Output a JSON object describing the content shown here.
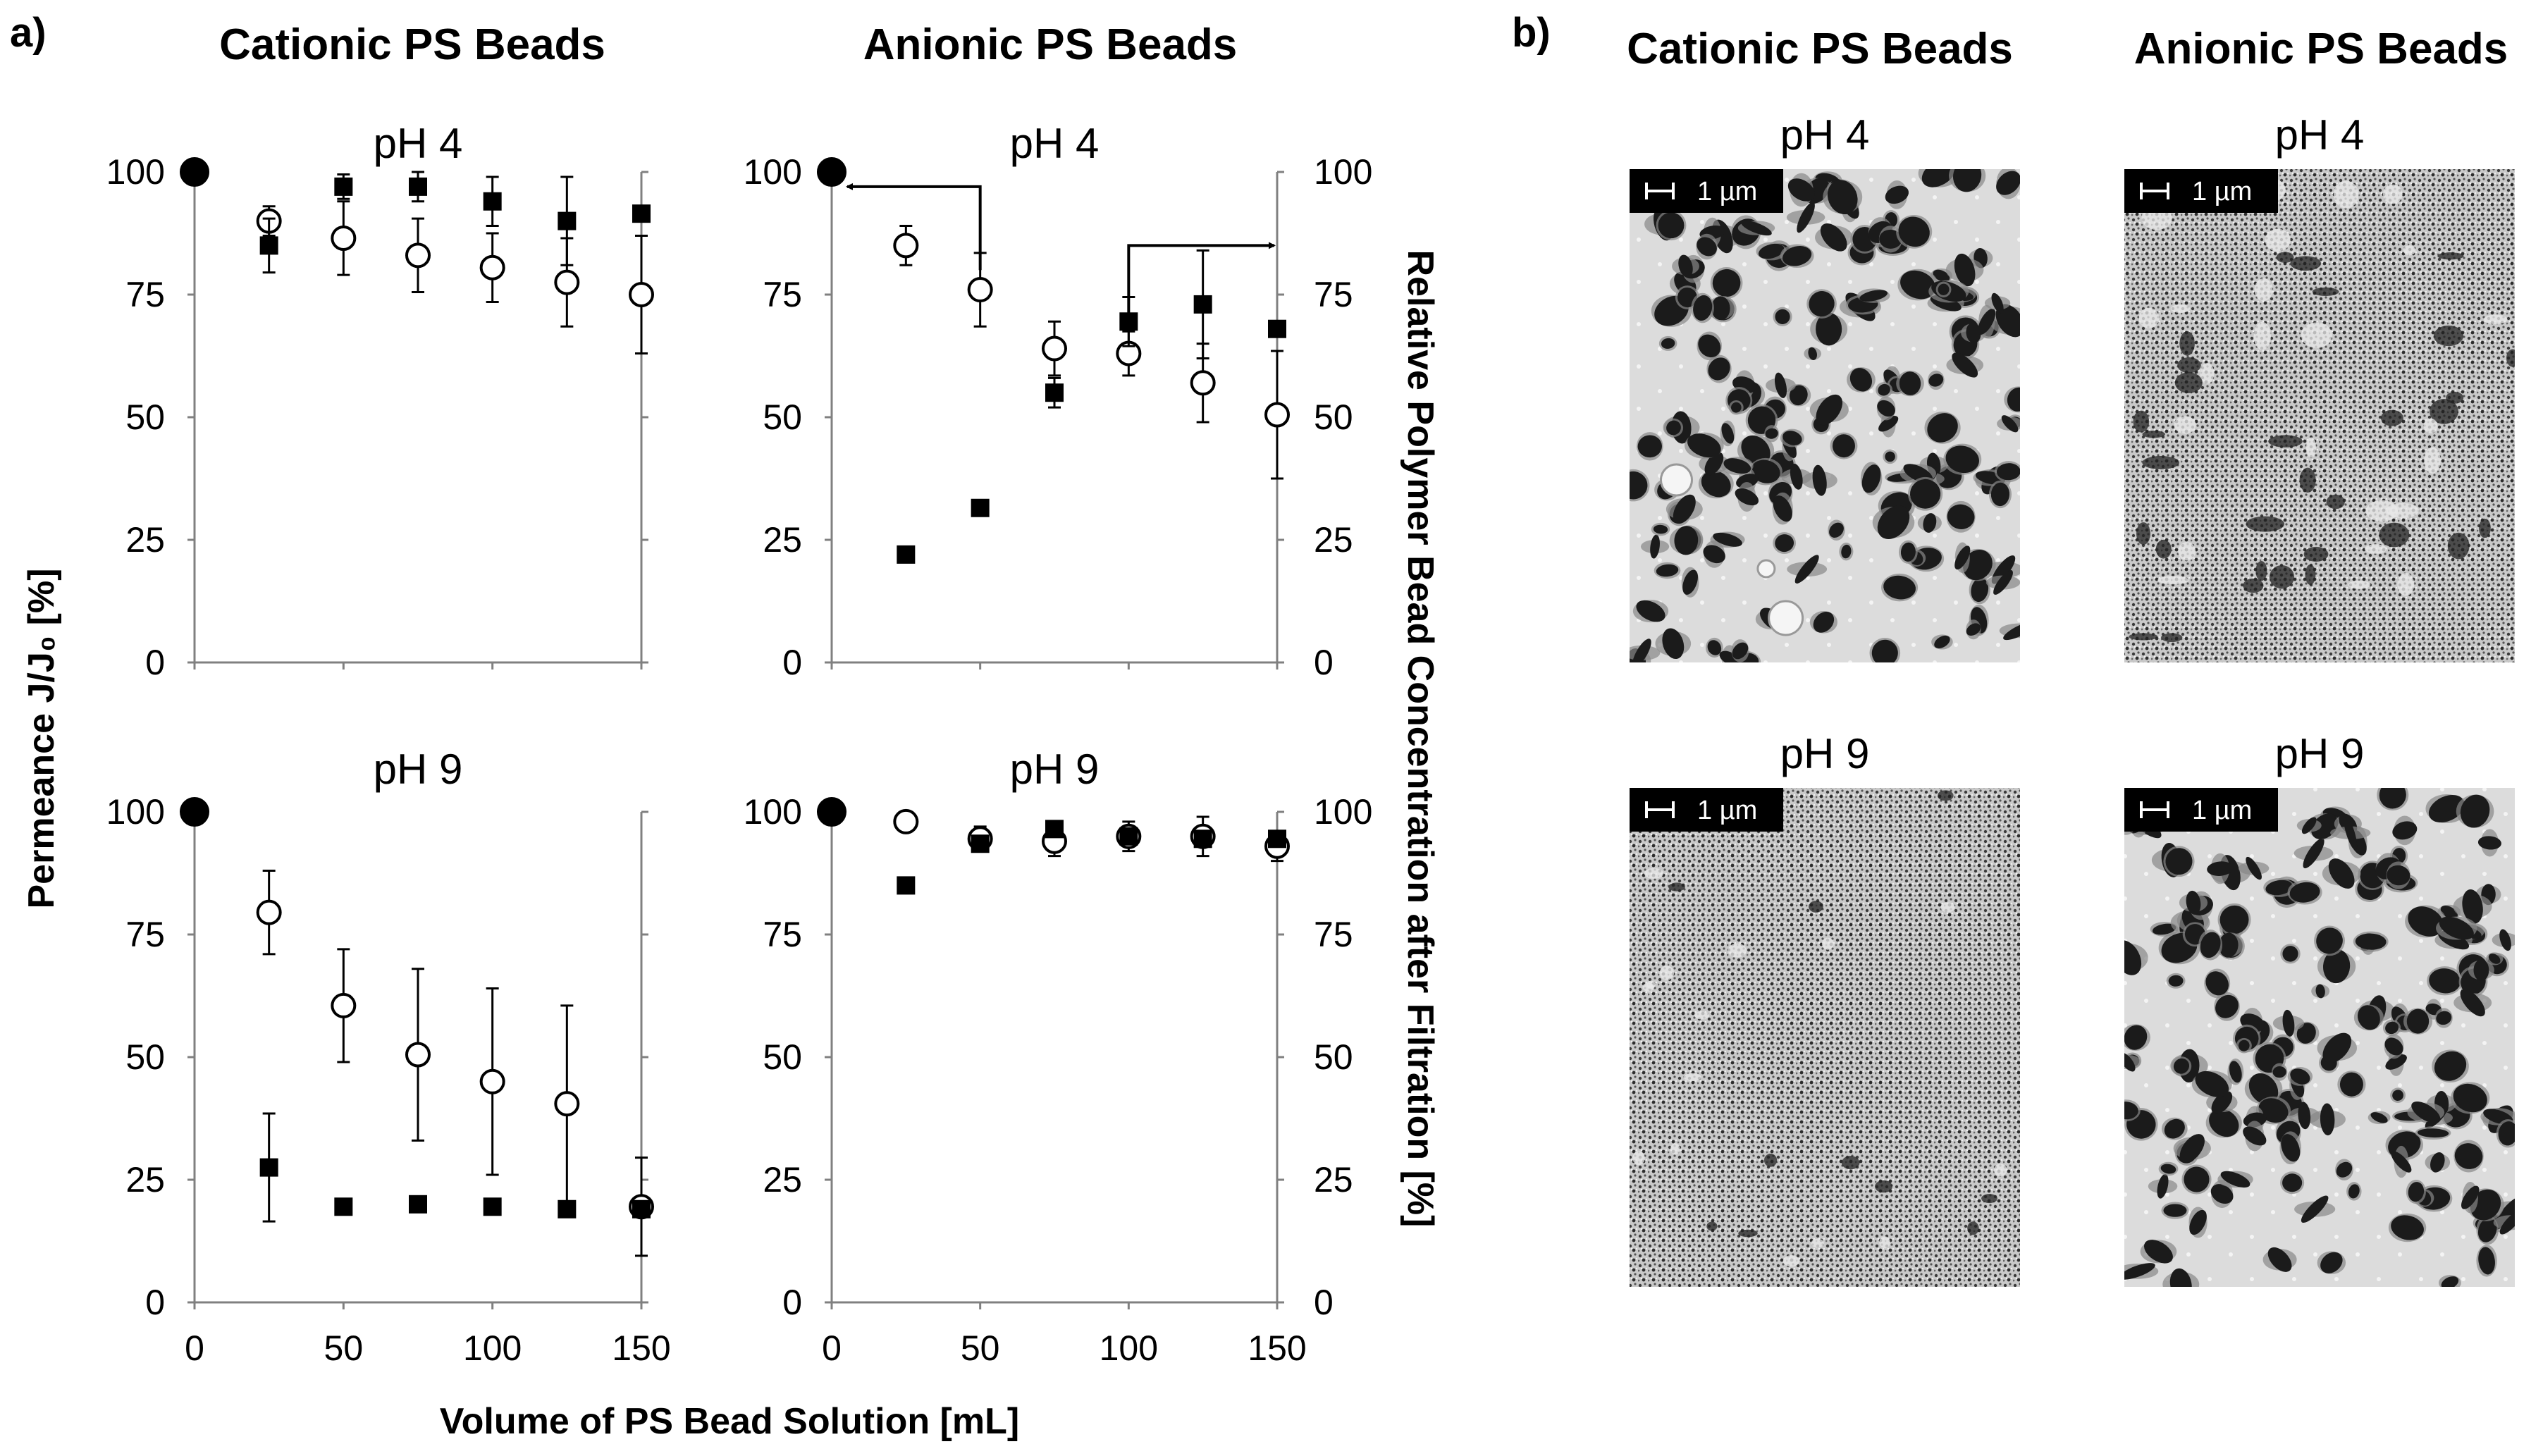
{
  "panel_labels": {
    "a": "a)",
    "b": "b)"
  },
  "headers": {
    "cationic": "Cationic PS Beads",
    "anionic": "Anionic PS Beads"
  },
  "axes": {
    "left_label": "Permeance J/J₀ [%]",
    "right_label": "Relative Polymer Bead Concentration after Filtration [%]",
    "x_label": "Volume of PS Bead Solution [mL]",
    "y_ticks": [
      0,
      25,
      50,
      75,
      100
    ],
    "x_ticks": [
      0,
      50,
      100,
      150
    ]
  },
  "sem": {
    "scale_label": "1 µm",
    "tiles": [
      {
        "id": "cat-ph4",
        "header": "pH 4",
        "style": "porous"
      },
      {
        "id": "ani-ph4",
        "header": "pH 4",
        "style": "fine"
      },
      {
        "id": "cat-ph9",
        "header": "pH 9",
        "style": "fine"
      },
      {
        "id": "ani-ph9",
        "header": "pH 9",
        "style": "porous"
      }
    ]
  },
  "colors": {
    "marker": "#000000",
    "sem_light": "#e6e6e6",
    "sem_dark": "#1a1a1a",
    "scale_bg": "#000000"
  },
  "chart_data": [
    {
      "id": "cationic-ph4",
      "type": "scatter",
      "title": "pH 4",
      "column": "Cationic PS Beads",
      "xlim": [
        0,
        150
      ],
      "ylim": [
        0,
        100
      ],
      "right_axis": false,
      "series": [
        {
          "name": "Permeance",
          "marker": "open-circle",
          "axis": "left",
          "x": [
            0,
            25,
            50,
            75,
            100,
            125,
            150
          ],
          "y": [
            100,
            90,
            86.5,
            83,
            80.5,
            77.5,
            75
          ],
          "err": [
            0,
            3,
            7.5,
            7.5,
            7,
            9,
            12
          ]
        },
        {
          "name": "Relative Polymer Bead Concentration",
          "marker": "filled-square",
          "axis": "right",
          "x": [
            25,
            50,
            75,
            100,
            125,
            150
          ],
          "y": [
            85,
            97,
            97,
            94,
            90,
            91.5
          ],
          "err": [
            5.5,
            2.5,
            3,
            5,
            9,
            0
          ]
        }
      ],
      "filled_circle_at_start": true
    },
    {
      "id": "anionic-ph4",
      "type": "scatter",
      "title": "pH 4",
      "column": "Anionic PS Beads",
      "xlim": [
        0,
        150
      ],
      "ylim": [
        0,
        100
      ],
      "right_axis": true,
      "series": [
        {
          "name": "Permeance",
          "marker": "open-circle",
          "axis": "left",
          "x": [
            0,
            25,
            50,
            75,
            100,
            125,
            150
          ],
          "y": [
            100,
            85,
            76,
            64,
            63,
            57,
            50.5
          ],
          "err": [
            0,
            4,
            7.5,
            5.5,
            4.5,
            8,
            13
          ]
        },
        {
          "name": "Relative Polymer Bead Concentration",
          "marker": "filled-square",
          "axis": "right",
          "x": [
            25,
            50,
            75,
            100,
            125,
            150
          ],
          "y": [
            22,
            31.5,
            55,
            69.5,
            73,
            68
          ],
          "err": [
            0,
            0,
            3,
            5,
            11,
            0
          ]
        }
      ],
      "filled_circle_at_start": true,
      "arrows": [
        {
          "from": [
            50,
            80
          ],
          "corner": [
            50,
            97
          ],
          "to": [
            0,
            97
          ],
          "direction": "left"
        },
        {
          "from": [
            100,
            70
          ],
          "corner": [
            100,
            85
          ],
          "to": [
            150,
            85
          ],
          "direction": "right"
        }
      ]
    },
    {
      "id": "cationic-ph9",
      "type": "scatter",
      "title": "pH 9",
      "column": "Cationic PS Beads",
      "xlim": [
        0,
        150
      ],
      "ylim": [
        0,
        100
      ],
      "right_axis": false,
      "series": [
        {
          "name": "Permeance",
          "marker": "open-circle",
          "axis": "left",
          "x": [
            0,
            25,
            50,
            75,
            100,
            125,
            150
          ],
          "y": [
            100,
            79.5,
            60.5,
            50.5,
            45,
            40.5,
            19.5
          ],
          "err": [
            0,
            8.5,
            11.5,
            17.5,
            19,
            20,
            10
          ]
        },
        {
          "name": "Relative Polymer Bead Concentration",
          "marker": "filled-square",
          "axis": "right",
          "x": [
            25,
            50,
            75,
            100,
            125,
            150
          ],
          "y": [
            27.5,
            19.5,
            20,
            19.5,
            19,
            19
          ],
          "err": [
            11,
            0,
            0,
            0,
            0,
            0
          ]
        }
      ],
      "filled_circle_at_start": true
    },
    {
      "id": "anionic-ph9",
      "type": "scatter",
      "title": "pH 9",
      "column": "Anionic PS Beads",
      "xlim": [
        0,
        150
      ],
      "ylim": [
        0,
        100
      ],
      "right_axis": true,
      "series": [
        {
          "name": "Permeance",
          "marker": "open-circle",
          "axis": "left",
          "x": [
            0,
            25,
            50,
            75,
            100,
            125,
            150
          ],
          "y": [
            100,
            98,
            94.5,
            94,
            95,
            95,
            93
          ],
          "err": [
            0,
            1.5,
            2.5,
            3,
            3,
            4,
            3
          ]
        },
        {
          "name": "Relative Polymer Bead Concentration",
          "marker": "filled-square",
          "axis": "right",
          "x": [
            25,
            50,
            75,
            100,
            125,
            150
          ],
          "y": [
            85,
            93.5,
            96.5,
            95,
            94.5,
            94.5
          ],
          "err": [
            0,
            0,
            0,
            0,
            0,
            0
          ]
        }
      ],
      "filled_circle_at_start": true
    }
  ]
}
